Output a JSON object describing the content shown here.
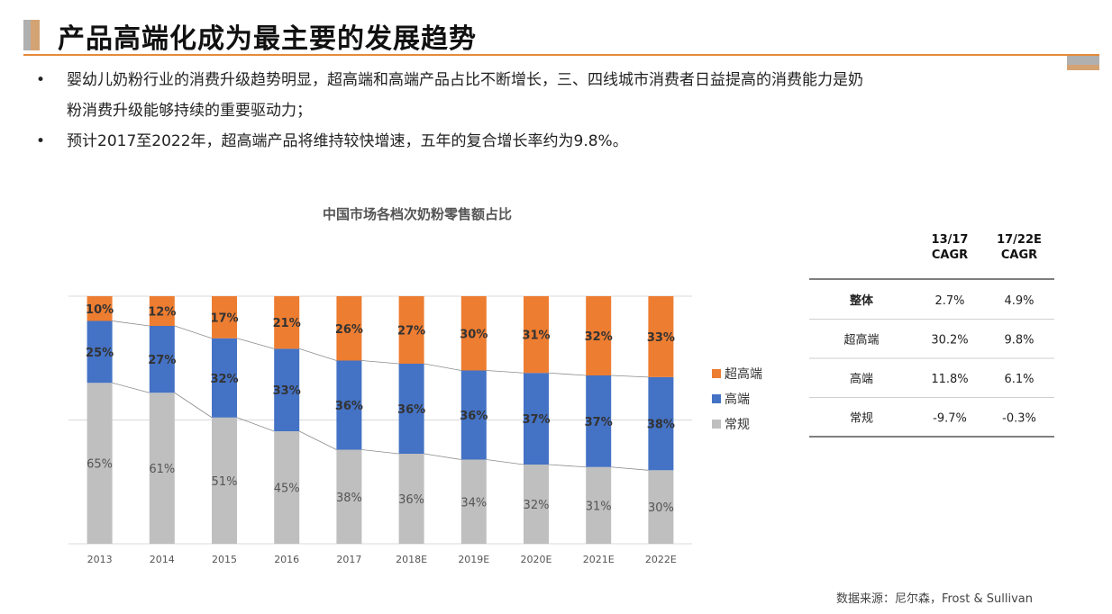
{
  "page": {
    "title": "产品高端化成为最主要的发展趋势",
    "bullets": [
      "婴幼儿奶粉行业的消费升级趋势明显，超高端和高端产品占比不断增长，三、四线城市消费者日益提高的消费能力是奶",
      "粉消费升级能够持续的重要驱动力；",
      "预计2017至2022年，超高端产品将维持较快增速，五年的复合增长率约为9.8%。"
    ],
    "bullet_marker": "•",
    "source": "数据来源：尼尔森，Frost & Sullivan"
  },
  "chart_data": {
    "type": "bar",
    "stacked": true,
    "title": "中国市场各档次奶粉零售额占比",
    "categories": [
      "2013",
      "2014",
      "2015",
      "2016",
      "2017",
      "2018E",
      "2019E",
      "2020E",
      "2021E",
      "2022E"
    ],
    "series": [
      {
        "name": "常规",
        "color": "#bfbfbf",
        "values": [
          65,
          61,
          51,
          45,
          38,
          36,
          34,
          32,
          31,
          30
        ]
      },
      {
        "name": "高端",
        "color": "#4472c4",
        "values": [
          25,
          27,
          32,
          33,
          36,
          36,
          36,
          37,
          37,
          38
        ]
      },
      {
        "name": "超高端",
        "color": "#ed7d31",
        "values": [
          10,
          12,
          17,
          21,
          26,
          27,
          30,
          31,
          32,
          33
        ]
      }
    ],
    "legend_order": [
      "超高端",
      "高端",
      "常规"
    ],
    "value_suffix": "%",
    "ylim": [
      0,
      100
    ],
    "legend": "right",
    "grid": true
  },
  "table": {
    "headers": [
      "",
      "13/17\nCAGR",
      "17/22E\nCAGR"
    ],
    "rows": [
      [
        "整体",
        "2.7%",
        "4.9%"
      ],
      [
        "超高端",
        "30.2%",
        "9.8%"
      ],
      [
        "高端",
        "11.8%",
        "6.1%"
      ],
      [
        "常规",
        "-9.7%",
        "-0.3%"
      ]
    ]
  },
  "colors": {
    "accent": "#e58a3a",
    "label_dark": "#333333",
    "label_light": "#555555"
  }
}
